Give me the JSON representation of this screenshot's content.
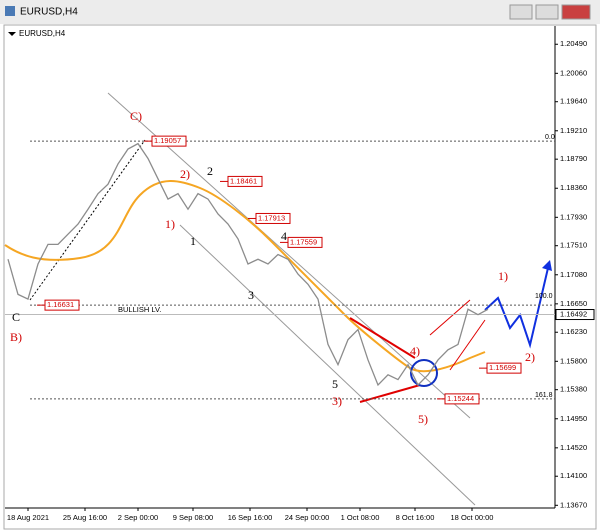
{
  "window_title": "EURUSD,H4",
  "chart_data": {
    "type": "line",
    "symbol": "EURUSD,H4",
    "color": "#8c8c8c",
    "values": [
      1.1731,
      1.1679,
      1.1672,
      1.1724,
      1.1753,
      1.1753,
      1.1768,
      1.1783,
      1.1805,
      1.1828,
      1.1842,
      1.1872,
      1.1894,
      1.1902,
      1.188,
      1.185,
      1.182,
      1.1828,
      1.1805,
      1.1828,
      1.182,
      1.1798,
      1.1783,
      1.1761,
      1.1724,
      1.1731,
      1.1724,
      1.1738,
      1.1731,
      1.1709,
      1.1694,
      1.1672,
      1.1605,
      1.1575,
      1.1612,
      1.1627,
      1.1582,
      1.1545,
      1.156,
      1.1553,
      1.1575,
      1.1545,
      1.156,
      1.1582,
      1.1597,
      1.1605,
      1.1657,
      1.1649,
      1.1657
    ],
    "xlim": [
      -0.3,
      54.7
    ],
    "xticks": [
      {
        "value": 2,
        "label": "18 Aug 2021"
      },
      {
        "value": 7.7,
        "label": "25 Aug 16:00"
      },
      {
        "value": 13,
        "label": "2 Sep 00:00"
      },
      {
        "value": 18.5,
        "label": "9 Sep 08:00"
      },
      {
        "value": 24.2,
        "label": "16 Sep 16:00"
      },
      {
        "value": 29.9,
        "label": "24 Sep 00:00"
      },
      {
        "value": 35.2,
        "label": "1 Oct 08:00"
      },
      {
        "value": 40.7,
        "label": "8 Oct 16:00"
      },
      {
        "value": 46.4,
        "label": "18 Oct 00:00"
      }
    ],
    "ylim": [
      1.1363,
      1.2076
    ],
    "yticks": [
      {
        "value": 1.2049,
        "label": "1.20490"
      },
      {
        "value": 1.2006,
        "label": "1.20060"
      },
      {
        "value": 1.1964,
        "label": "1.19640"
      },
      {
        "value": 1.1921,
        "label": "1.19210"
      },
      {
        "value": 1.1879,
        "label": "1.18790"
      },
      {
        "value": 1.1836,
        "label": "1.18360"
      },
      {
        "value": 1.1793,
        "label": "1.17930"
      },
      {
        "value": 1.1751,
        "label": "1.17510"
      },
      {
        "value": 1.1708,
        "label": "1.17080"
      },
      {
        "value": 1.1665,
        "label": "1.16650"
      },
      {
        "value": 1.1623,
        "label": "1.16230"
      },
      {
        "value": 1.158,
        "label": "1.15800"
      },
      {
        "value": 1.1538,
        "label": "1.15380"
      },
      {
        "value": 1.1495,
        "label": "1.14950"
      },
      {
        "value": 1.1452,
        "label": "1.14520"
      },
      {
        "value": 1.141,
        "label": "1.14100"
      },
      {
        "value": 1.1367,
        "label": "1.13670"
      }
    ],
    "price_labels": [
      1.19057,
      1.18461,
      1.17913,
      1.17559,
      1.16631,
      1.15699,
      1.15244
    ],
    "current_price": 1.16492,
    "fib_levels": [
      "0.0",
      "100.0",
      "161.8"
    ],
    "annotations": [
      "C)",
      "2)",
      "1)",
      "1",
      "2",
      "3",
      "4",
      "5",
      "3)",
      "4)",
      "5)",
      "1)",
      "2)",
      "C",
      "B)",
      "BULLISH LV."
    ]
  }
}
